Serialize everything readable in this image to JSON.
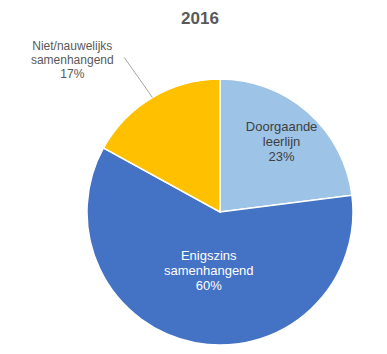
{
  "chart_data": {
    "type": "pie",
    "title": "2016",
    "categories": [
      "Doorgaande leerlijn",
      "Enigszins samenhangend",
      "Niet/nauwelijks samenhangend"
    ],
    "values": [
      23,
      60,
      17
    ],
    "value_labels": [
      "23%",
      "60%",
      "17%"
    ],
    "colors": [
      "#9dc3e6",
      "#4472c4",
      "#ffc000"
    ],
    "data_labels": true
  }
}
